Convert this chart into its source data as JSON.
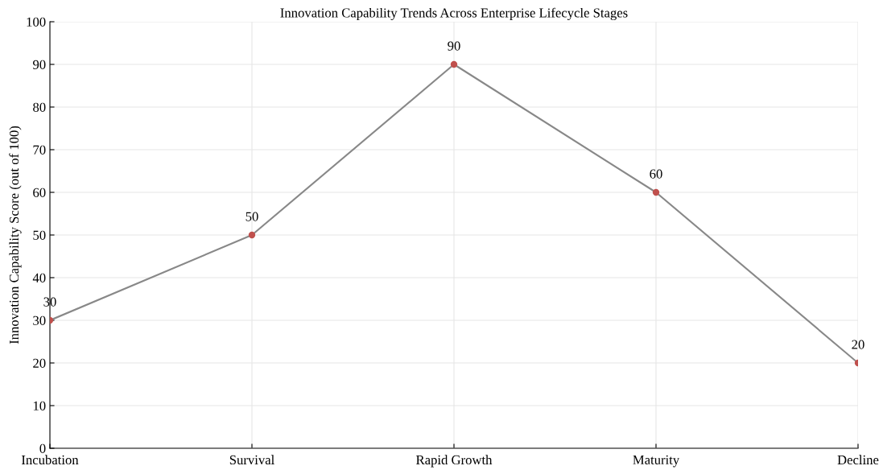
{
  "chart_data": {
    "type": "line",
    "title": "Innovation Capability Trends Across Enterprise Lifecycle Stages",
    "ylabel": "Innovation Capability Score (out of 100)",
    "categories": [
      "Incubation",
      "Survival",
      "Rapid Growth",
      "Maturity",
      "Decline"
    ],
    "series": [
      {
        "color": "#888888",
        "colors": [
          "#c0504d",
          "#c0504d",
          "#c0504d",
          "#c0504d",
          "#c0504d"
        ],
        "values": [
          30,
          50,
          90,
          60,
          20
        ]
      }
    ],
    "ylim": [
      0,
      100
    ],
    "yticks": [
      0,
      10,
      20,
      30,
      40,
      50,
      60,
      70,
      80,
      90,
      100
    ],
    "grid": true,
    "marker": "circle",
    "line_style": "solid",
    "data_labels": true
  }
}
